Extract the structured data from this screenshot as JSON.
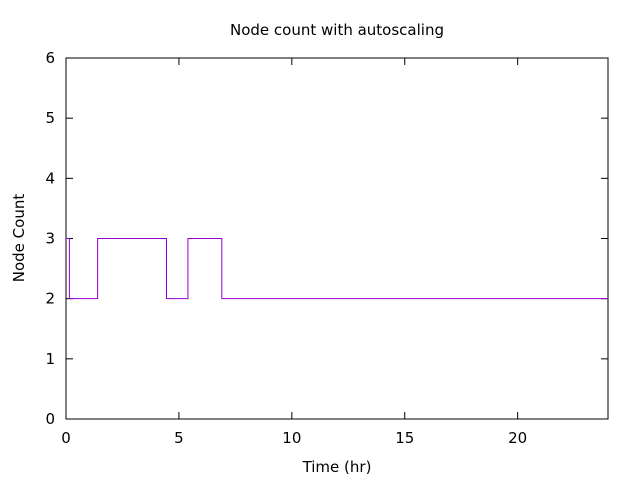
{
  "chart_data": {
    "type": "line",
    "title": "Node count with autoscaling",
    "xlabel": "Time (hr)",
    "ylabel": "Node Count",
    "xlim": [
      0,
      24
    ],
    "ylim": [
      0,
      6
    ],
    "xticks": [
      0,
      5,
      10,
      15,
      20
    ],
    "yticks": [
      0,
      1,
      2,
      3,
      4,
      5,
      6
    ],
    "grid": false,
    "line_style": "step",
    "colors": {
      "series": "#9400d3",
      "axes": "#000000"
    },
    "series": [
      {
        "x": [
          0,
          0.15,
          1.4,
          4.45,
          5.4,
          6.9,
          24
        ],
        "y": [
          3,
          2,
          3,
          2,
          3,
          2,
          2
        ]
      }
    ]
  }
}
